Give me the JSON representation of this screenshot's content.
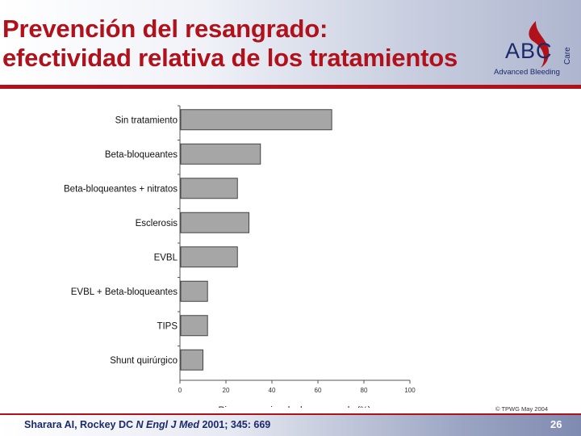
{
  "slide": {
    "title_line1": "Prevención del resangrado:",
    "title_line2": "efectividad relativa de los tratamientos",
    "logo_text": "ABC",
    "logo_care": "Care",
    "logo_subtitle": "Advanced Bleeding",
    "copyright": "© TPWG May 2004",
    "reference_authors": "Sharara AI, Rockey DC ",
    "reference_journal": "N Engl J Med",
    "reference_rest": " 2001; 345: 669",
    "page_number": "26",
    "colors": {
      "title": "#b0111b",
      "accent": "#b0111b",
      "navy": "#1a2a6c",
      "bar": "#a6a6a6"
    }
  },
  "chart_data": {
    "type": "bar",
    "orientation": "horizontal",
    "categories": [
      "Sin tratamiento",
      "Beta-bloqueantes",
      "Beta-bloqueantes + nitratos",
      "Esclerosis",
      "EVBL",
      "EVBL + Beta-bloqueantes",
      "TIPS",
      "Shunt quirúrgico"
    ],
    "values": [
      66,
      35,
      25,
      30,
      25,
      12,
      12,
      10
    ],
    "xlabel": "Riesgo aproximado de resangrado (%)",
    "xlim": [
      0,
      100
    ],
    "xticks": [
      "0",
      "20",
      "40",
      "60",
      "80",
      "100"
    ],
    "grid": false
  }
}
